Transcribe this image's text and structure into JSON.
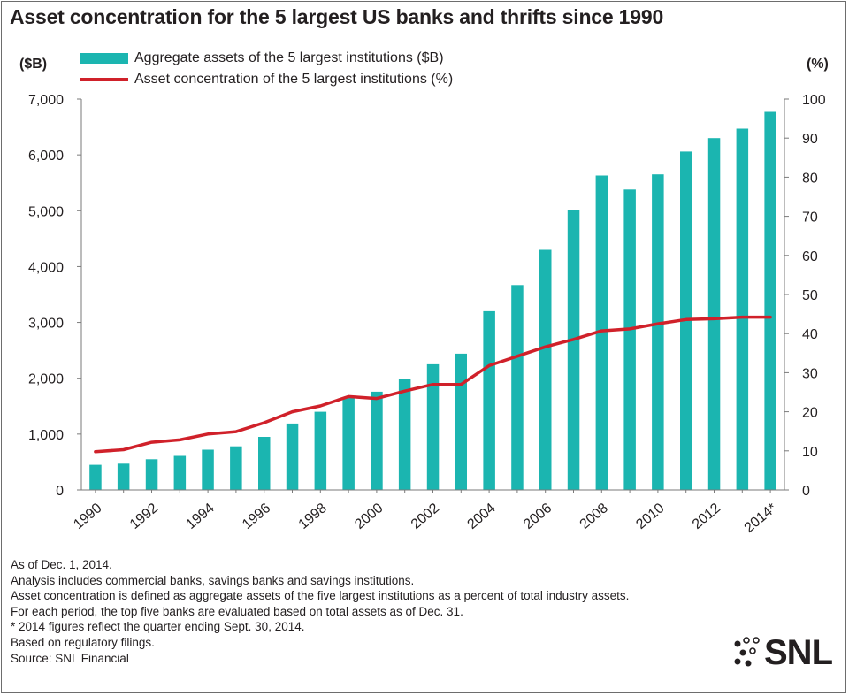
{
  "title": "Asset concentration for the 5 largest US banks and thrifts since 1990",
  "legend": {
    "bar_label": "Aggregate assets of the 5 largest institutions ($B)",
    "line_label": "Asset concentration of the 5 largest institutions (%)"
  },
  "notes": [
    "As of Dec. 1, 2014.",
    "Analysis includes commercial banks, savings banks and savings institutions.",
    "Asset concentration is defined as aggregate assets of the five largest institutions as a percent of total industry assets.",
    "For each period, the top five banks are evaluated based on total assets as of Dec. 31.",
    "* 2014 figures reflect the quarter ending Sept. 30, 2014.",
    "Based on regulatory filings.",
    "Source: SNL Financial"
  ],
  "logo": {
    "text": "SNL"
  },
  "chart_data": {
    "type": "bar",
    "title": "Asset concentration for the 5 largest US banks and thrifts since 1990",
    "categories": [
      "1990",
      "1991",
      "1992",
      "1993",
      "1994",
      "1995",
      "1996",
      "1997",
      "1998",
      "1999",
      "2000",
      "2001",
      "2002",
      "2003",
      "2004",
      "2005",
      "2006",
      "2007",
      "2008",
      "2009",
      "2010",
      "2011",
      "2012",
      "2013",
      "2014*"
    ],
    "x_tick_labels": [
      "1990",
      "1992",
      "1994",
      "1996",
      "1998",
      "2000",
      "2002",
      "2004",
      "2006",
      "2008",
      "2010",
      "2012",
      "2014*"
    ],
    "y_left": {
      "unit": "($B)",
      "range": [
        0,
        7000
      ],
      "ticks": [
        "0",
        "1,000",
        "2,000",
        "3,000",
        "4,000",
        "5,000",
        "6,000",
        "7,000"
      ]
    },
    "y_right": {
      "unit": "(%)",
      "range": [
        0,
        100
      ],
      "ticks": [
        "0",
        "10",
        "20",
        "30",
        "40",
        "50",
        "60",
        "70",
        "80",
        "90",
        "100"
      ]
    },
    "grid": false,
    "legend_position": "top-left",
    "colors": {
      "bars": "#1bb5b0",
      "line": "#d0212a"
    },
    "series": [
      {
        "name": "Aggregate assets of the 5 largest institutions ($B)",
        "type": "bar",
        "axis": "left",
        "values": [
          450,
          470,
          550,
          610,
          720,
          780,
          950,
          1190,
          1400,
          1650,
          1760,
          1990,
          2250,
          2440,
          3200,
          3670,
          4300,
          5020,
          5630,
          5380,
          5650,
          6060,
          6300,
          6470,
          6770
        ]
      },
      {
        "name": "Asset concentration of the 5 largest institutions (%)",
        "type": "line",
        "axis": "right",
        "values": [
          9.8,
          10.3,
          12.2,
          12.8,
          14.3,
          14.9,
          17.2,
          20.0,
          21.5,
          23.9,
          23.4,
          25.3,
          27.0,
          27.0,
          31.8,
          34.2,
          36.6,
          38.5,
          40.7,
          41.2,
          42.5,
          43.6,
          43.8,
          44.2,
          44.2
        ]
      }
    ]
  }
}
